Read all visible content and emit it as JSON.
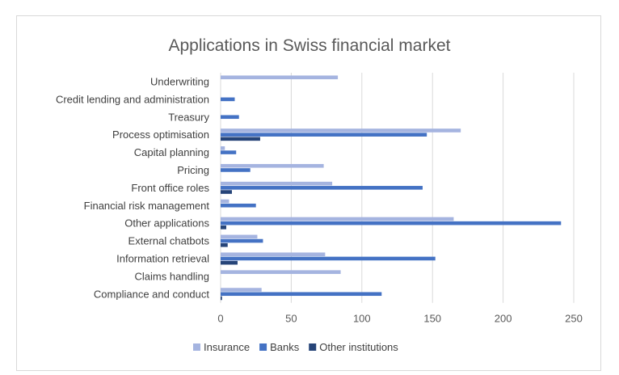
{
  "chart_data": {
    "type": "bar",
    "orientation": "horizontal",
    "title": "Applications in Swiss financial market",
    "categories": [
      "Underwriting",
      "Credit lending and administration",
      "Treasury",
      "Process optimisation",
      "Capital planning",
      "Pricing",
      "Front office roles",
      "Financial risk management",
      "Other applications",
      "External chatbots",
      "Information retrieval",
      "Claims handling",
      "Compliance and conduct"
    ],
    "series": [
      {
        "name": "Insurance",
        "color": "#a5b4e0",
        "values": [
          83,
          0,
          0,
          170,
          3,
          73,
          79,
          6,
          165,
          26,
          74,
          85,
          29
        ]
      },
      {
        "name": "Banks",
        "color": "#4472c4",
        "values": [
          0,
          10,
          13,
          146,
          11,
          21,
          143,
          25,
          241,
          30,
          152,
          0,
          114
        ]
      },
      {
        "name": "Other institutions",
        "color": "#264478",
        "values": [
          0,
          0,
          0,
          28,
          0,
          0,
          8,
          0,
          4,
          5,
          12,
          0,
          1
        ]
      }
    ],
    "xlim": [
      0,
      250
    ],
    "xticks": [
      "0",
      "50",
      "100",
      "150",
      "200",
      "250"
    ],
    "grid": "vertical",
    "legend": "bottom"
  }
}
